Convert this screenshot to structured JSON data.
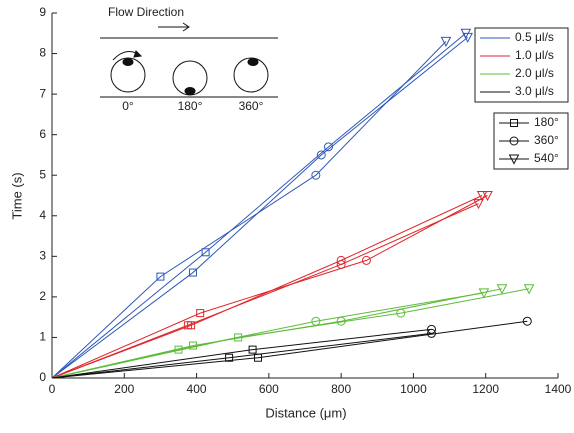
{
  "chart_data": {
    "type": "line",
    "x_label": "Distance (μm)",
    "y_label": "Time (s)",
    "xlim": [
      0,
      1400
    ],
    "xticks": [
      0,
      200,
      400,
      600,
      800,
      1000,
      1200,
      1400
    ],
    "ylim": [
      0,
      9
    ],
    "yticks": [
      0,
      1,
      2,
      3,
      4,
      5,
      6,
      7,
      8,
      9
    ],
    "series": [
      {
        "name": "0.5 μl/s",
        "color": "#2e58b8",
        "lines": [
          {
            "x": [
              0,
              300,
              730,
              1090
            ],
            "y": [
              0,
              2.5,
              5.0,
              8.3
            ]
          },
          {
            "x": [
              0,
              390,
              745,
              1150
            ],
            "y": [
              0,
              2.6,
              5.5,
              8.4
            ]
          },
          {
            "x": [
              0,
              425,
              765,
              1145
            ],
            "y": [
              0,
              3.1,
              5.7,
              8.5
            ]
          }
        ]
      },
      {
        "name": "1.0 μl/s",
        "color": "#e0262b",
        "lines": [
          {
            "x": [
              0,
              376,
              800,
              1180
            ],
            "y": [
              0,
              1.3,
              2.8,
              4.3
            ]
          },
          {
            "x": [
              0,
              385,
              800,
              1190
            ],
            "y": [
              0,
              1.3,
              2.9,
              4.5
            ]
          },
          {
            "x": [
              0,
              410,
              870,
              1205
            ],
            "y": [
              0,
              1.6,
              2.9,
              4.5
            ]
          }
        ]
      },
      {
        "name": "2.0 μl/s",
        "color": "#5dbb3a",
        "lines": [
          {
            "x": [
              0,
              350,
              730,
              1195
            ],
            "y": [
              0,
              0.7,
              1.4,
              2.1
            ]
          },
          {
            "x": [
              0,
              390,
              800,
              1245
            ],
            "y": [
              0,
              0.8,
              1.4,
              2.2
            ]
          },
          {
            "x": [
              0,
              515,
              965,
              1320
            ],
            "y": [
              0,
              1.0,
              1.6,
              2.2
            ]
          }
        ]
      },
      {
        "name": "3.0 μl/s",
        "color": "#111111",
        "lines": [
          {
            "x": [
              0,
              490,
              1050
            ],
            "y": [
              0,
              0.5,
              1.1
            ]
          },
          {
            "x": [
              0,
              555,
              1050
            ],
            "y": [
              0,
              0.7,
              1.2
            ]
          },
          {
            "x": [
              0,
              570,
              1315
            ],
            "y": [
              0,
              0.5,
              1.4
            ]
          }
        ]
      }
    ],
    "markers": [
      {
        "label": "180°",
        "shape": "square"
      },
      {
        "label": "360°",
        "shape": "circle"
      },
      {
        "label": "540°",
        "shape": "triangle"
      }
    ],
    "inset": {
      "title": "Flow Direction",
      "labels": [
        "0°",
        "180°",
        "360°"
      ]
    }
  }
}
